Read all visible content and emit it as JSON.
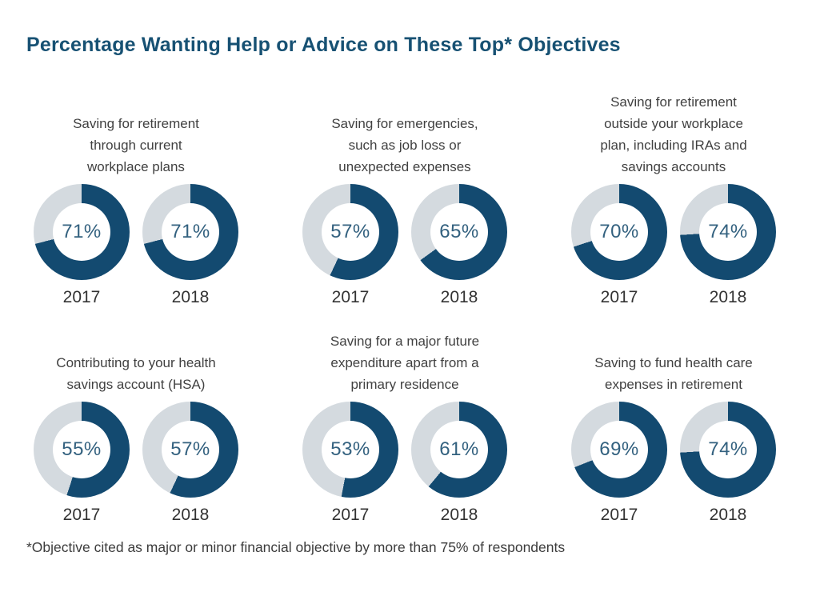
{
  "title": "Percentage Wanting Help or Advice on These Top* Objectives",
  "footnote": "*Objective cited as major or minor financial objective by more than 75% of respondents",
  "colors": {
    "title": "#175173",
    "heading": "#414141",
    "year": "#333333",
    "pct": "#33617F",
    "footnote": "#3C3C3C",
    "donut_fill": "#134A70",
    "donut_rest": "#D4DADF"
  },
  "chart_data": {
    "type": "pie",
    "variant": "donut-pairs-grid",
    "title": "Percentage Wanting Help or Advice on These Top* Objectives",
    "categories": [
      "2017",
      "2018"
    ],
    "unit": "percent",
    "start_angle": "12 o'clock",
    "direction": "clockwise",
    "panels": [
      {
        "objective": "Saving for retirement\nthrough current\nworkplace plans",
        "values": [
          71,
          71
        ],
        "labels": [
          "71%",
          "71%"
        ]
      },
      {
        "objective": "Saving for emergencies,\nsuch as job loss or\nunexpected expenses",
        "values": [
          57,
          65
        ],
        "labels": [
          "57%",
          "65%"
        ]
      },
      {
        "objective": "Saving for retirement\noutside your workplace\nplan, including IRAs and\nsavings accounts",
        "values": [
          70,
          74
        ],
        "labels": [
          "70%",
          "74%"
        ]
      },
      {
        "objective": "Contributing to your health\nsavings account (HSA)",
        "values": [
          55,
          57
        ],
        "labels": [
          "55%",
          "57%"
        ]
      },
      {
        "objective": "Saving for a major future\nexpenditure apart from a\nprimary residence",
        "values": [
          53,
          61
        ],
        "labels": [
          "53%",
          "61%"
        ]
      },
      {
        "objective": "Saving to fund health care\nexpenses in retirement",
        "values": [
          69,
          74
        ],
        "labels": [
          "69%",
          "74%"
        ]
      }
    ]
  }
}
